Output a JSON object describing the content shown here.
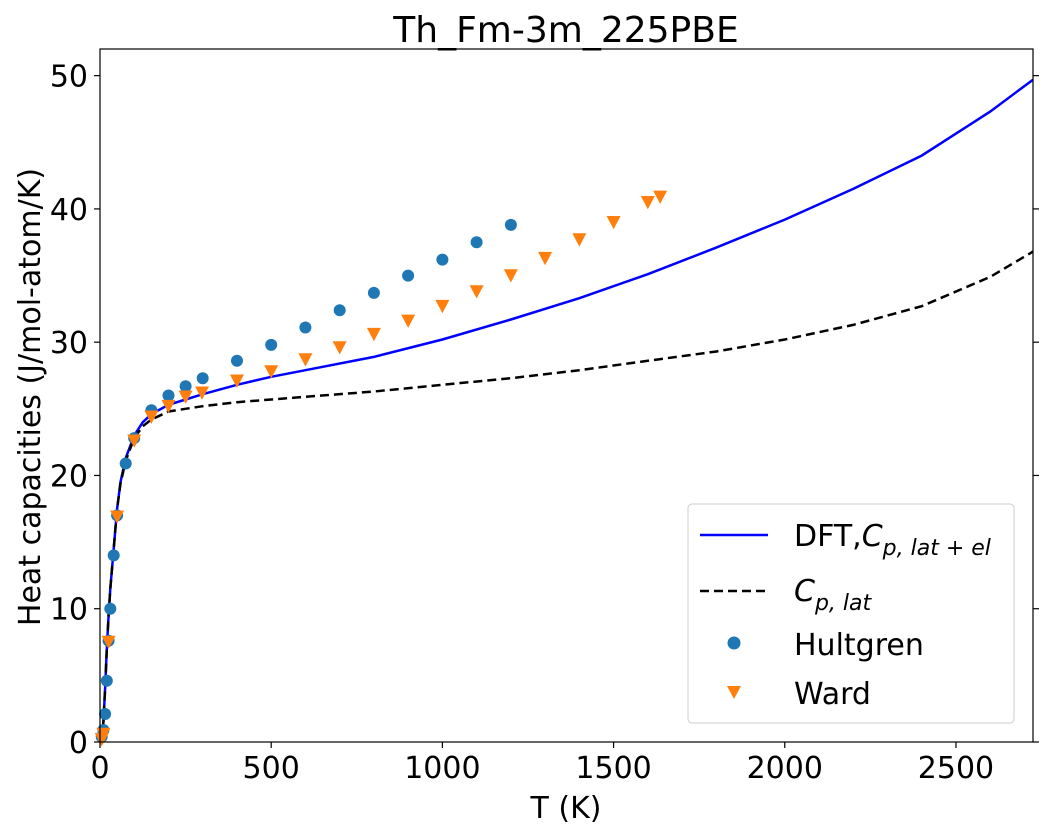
{
  "chart_data": {
    "type": "line",
    "title": "Th_Fm-3m_225PBE",
    "xlabel": "T (K)",
    "ylabel": "Heat capacities (J/mol-atom/K)",
    "xlim": [
      0,
      2725
    ],
    "ylim": [
      0,
      52
    ],
    "xticks": [
      0,
      500,
      1000,
      1500,
      2000,
      2500
    ],
    "yticks": [
      0,
      10,
      20,
      30,
      40,
      50
    ],
    "grid": false,
    "legend_position": "lower right",
    "series": [
      {
        "name": "DFT,C_{p,lat+el}",
        "kind": "line",
        "style": "solid",
        "color": "#0000ff",
        "x": [
          0,
          5,
          10,
          15,
          20,
          25,
          30,
          40,
          50,
          60,
          75,
          100,
          125,
          150,
          200,
          250,
          300,
          400,
          500,
          600,
          800,
          1000,
          1200,
          1400,
          1600,
          1800,
          2000,
          2200,
          2400,
          2600,
          2725
        ],
        "y": [
          0,
          0.3,
          1.5,
          4.0,
          7.0,
          9.5,
          11.5,
          14.5,
          17.5,
          19.5,
          21.3,
          23.0,
          24.0,
          24.6,
          25.3,
          25.7,
          26.1,
          26.8,
          27.4,
          27.9,
          28.9,
          30.2,
          31.7,
          33.3,
          35.1,
          37.1,
          39.2,
          41.5,
          44.0,
          47.3,
          49.7
        ]
      },
      {
        "name": "C_{p,lat}",
        "kind": "line",
        "style": "dashed",
        "color": "#000000",
        "x": [
          0,
          5,
          10,
          15,
          20,
          25,
          30,
          40,
          50,
          60,
          75,
          100,
          125,
          150,
          200,
          250,
          300,
          400,
          500,
          600,
          800,
          1000,
          1200,
          1400,
          1600,
          1800,
          2000,
          2200,
          2400,
          2600,
          2725
        ],
        "y": [
          0,
          0.3,
          1.5,
          4.0,
          7.0,
          9.5,
          11.5,
          14.5,
          17.5,
          19.4,
          21.1,
          22.8,
          23.7,
          24.2,
          24.8,
          25.0,
          25.2,
          25.5,
          25.7,
          25.9,
          26.3,
          26.8,
          27.3,
          27.9,
          28.6,
          29.3,
          30.2,
          31.3,
          32.7,
          34.9,
          36.8
        ]
      },
      {
        "name": "Hultgren",
        "kind": "scatter",
        "marker": "circle",
        "color": "#1f77b4",
        "x": [
          5,
          10,
          15,
          20,
          25,
          30,
          40,
          50,
          75,
          100,
          150,
          200,
          250,
          300,
          400,
          500,
          600,
          700,
          800,
          900,
          1000,
          1100,
          1200
        ],
        "y": [
          0.4,
          0.9,
          2.1,
          4.6,
          7.6,
          10.0,
          14.0,
          17.0,
          20.9,
          22.8,
          24.9,
          26.0,
          26.7,
          27.3,
          28.6,
          29.8,
          31.1,
          32.4,
          33.7,
          35.0,
          36.2,
          37.5,
          38.8
        ]
      },
      {
        "name": "Ward",
        "kind": "scatter",
        "marker": "triangle-down",
        "color": "#ff7f0e",
        "x": [
          5,
          10,
          25,
          50,
          100,
          150,
          200,
          250,
          298,
          400,
          500,
          600,
          700,
          800,
          900,
          1000,
          1100,
          1200,
          1300,
          1400,
          1500,
          1600,
          1636
        ],
        "y": [
          0.2,
          0.6,
          7.5,
          16.9,
          22.6,
          24.4,
          25.2,
          25.9,
          26.2,
          27.1,
          27.8,
          28.7,
          29.6,
          30.6,
          31.6,
          32.7,
          33.8,
          35.0,
          36.3,
          37.7,
          39.0,
          40.5,
          40.9
        ]
      }
    ],
    "legend": [
      {
        "label": "DFT,",
        "math_base": "C",
        "math_sub": "p, lat + el",
        "symbol": "solid-line",
        "color": "#0000ff"
      },
      {
        "label": "",
        "math_base": "C",
        "math_sub": "p, lat",
        "symbol": "dashed-line",
        "color": "#000000"
      },
      {
        "label": "Hultgren",
        "math_base": "",
        "math_sub": "",
        "symbol": "circle",
        "color": "#1f77b4"
      },
      {
        "label": "Ward",
        "math_base": "",
        "math_sub": "",
        "symbol": "triangle-down",
        "color": "#ff7f0e"
      }
    ]
  }
}
